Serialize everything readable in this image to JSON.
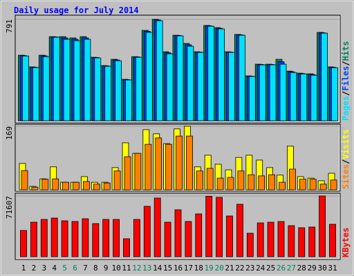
{
  "chart_data": {
    "type": "bar",
    "title": "Daily usage for July 2014",
    "categories": [
      "1",
      "2",
      "3",
      "4",
      "5",
      "6",
      "7",
      "8",
      "9",
      "10",
      "11",
      "12",
      "13",
      "14",
      "15",
      "16",
      "17",
      "18",
      "19",
      "20",
      "21",
      "22",
      "23",
      "24",
      "25",
      "26",
      "27",
      "28",
      "29",
      "30",
      "31"
    ],
    "category_colors": [
      "#000000",
      "#000000",
      "#000000",
      "#000000",
      "#00805c",
      "#00805c",
      "#000000",
      "#000000",
      "#000000",
      "#000000",
      "#000000",
      "#00805c",
      "#00805c",
      "#000000",
      "#000000",
      "#000000",
      "#000000",
      "#000000",
      "#00805c",
      "#00805c",
      "#000000",
      "#000000",
      "#000000",
      "#000000",
      "#000000",
      "#00805c",
      "#00805c",
      "#000000",
      "#000000",
      "#000000",
      "#000000"
    ],
    "legend_separator": "/",
    "panels": [
      {
        "ylim": [
          0,
          791
        ],
        "yticks": [
          791
        ],
        "series": [
          {
            "name": "Hits",
            "color": "#00805c",
            "values": [
              511,
              420,
              511,
              656,
              656,
              646,
              656,
              495,
              430,
              479,
              323,
              500,
              705,
              791,
              538,
              667,
              603,
              538,
              743,
              726,
              538,
              673,
              350,
              441,
              441,
              479,
              387,
              371,
              366,
              689,
              420
            ]
          },
          {
            "name": "Files",
            "color": "#0040ff",
            "values": [
              508,
              418,
              506,
              654,
              646,
              635,
              646,
              493,
              428,
              474,
              321,
              498,
              697,
              786,
              530,
              665,
              592,
              536,
              740,
              721,
              536,
              670,
              348,
              439,
              439,
              460,
              382,
              368,
              361,
              686,
              417
            ]
          },
          {
            "name": "Pages",
            "color": "#00e0ff",
            "values": [
              505,
              415,
              500,
              651,
              635,
              624,
              635,
              490,
              425,
              468,
              318,
              495,
              689,
              780,
              522,
              662,
              581,
              533,
              737,
              716,
              533,
              667,
              345,
              436,
              436,
              441,
              376,
              365,
              355,
              683,
              414
            ]
          }
        ]
      },
      {
        "ylim": [
          0,
          169
        ],
        "yticks": [
          169
        ],
        "series": [
          {
            "name": "Visits",
            "color": "#ffff00",
            "values": [
              70,
              9,
              29,
              61,
              20,
              20,
              35,
              20,
              20,
              59,
              125,
              97,
              160,
              149,
              123,
              162,
              169,
              61,
              92,
              68,
              53,
              86,
              92,
              79,
              59,
              39,
              116,
              35,
              31,
              24,
              44
            ]
          },
          {
            "name": "Sites",
            "color": "#ff8000",
            "values": [
              51,
              7,
              28,
              29,
              20,
              20,
              22,
              15,
              18,
              50,
              88,
              97,
              121,
              138,
              121,
              143,
              143,
              50,
              57,
              31,
              33,
              50,
              40,
              37,
              40,
              20,
              55,
              28,
              28,
              15,
              26
            ]
          }
        ]
      },
      {
        "ylim": [
          0,
          71607
        ],
        "yticks": [
          71607
        ],
        "series": [
          {
            "name": "KBytes",
            "color": "#ff0000",
            "values": [
              30921,
              40686,
              43941,
              45569,
              42314,
              41500,
              44755,
              39058,
              43941,
              43941,
              21157,
              43941,
              59401,
              69166,
              40686,
              55333,
              41500,
              50448,
              71200,
              69980,
              48006,
              61842,
              27666,
              39872,
              40686,
              41500,
              36617,
              34176,
              34990,
              71607,
              38244
            ]
          }
        ]
      }
    ]
  }
}
